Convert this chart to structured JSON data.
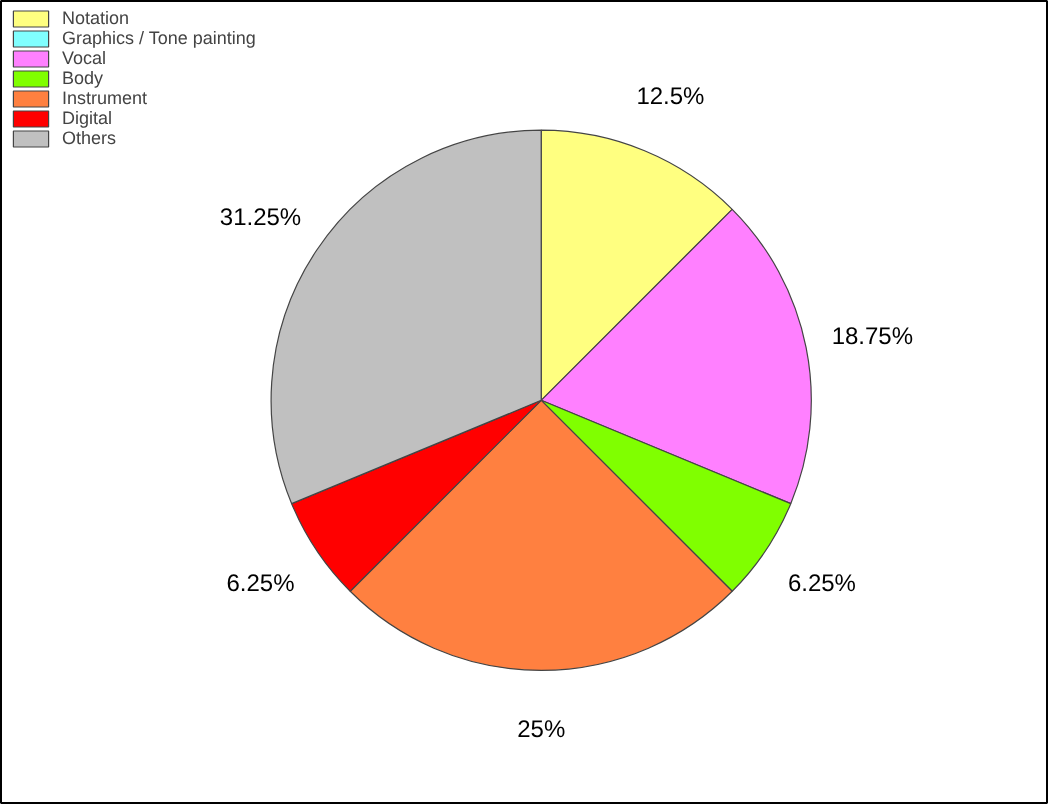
{
  "chart_data": {
    "type": "pie",
    "categories": [
      "Notation",
      "Graphics / Tone painting",
      "Vocal",
      "Body",
      "Instrument",
      "Digital",
      "Others"
    ],
    "values": [
      12.5,
      0,
      18.75,
      6.25,
      25,
      6.25,
      31.25
    ],
    "colors": [
      "#ffff80",
      "#80ffff",
      "#ff80ff",
      "#80ff00",
      "#ff8040",
      "#ff0000",
      "#c0c0c0"
    ],
    "value_labels": [
      "12.5%",
      null,
      "18.75%",
      "6.25%",
      "25%",
      "6.25%",
      "31.25%"
    ],
    "legend": "top left"
  }
}
